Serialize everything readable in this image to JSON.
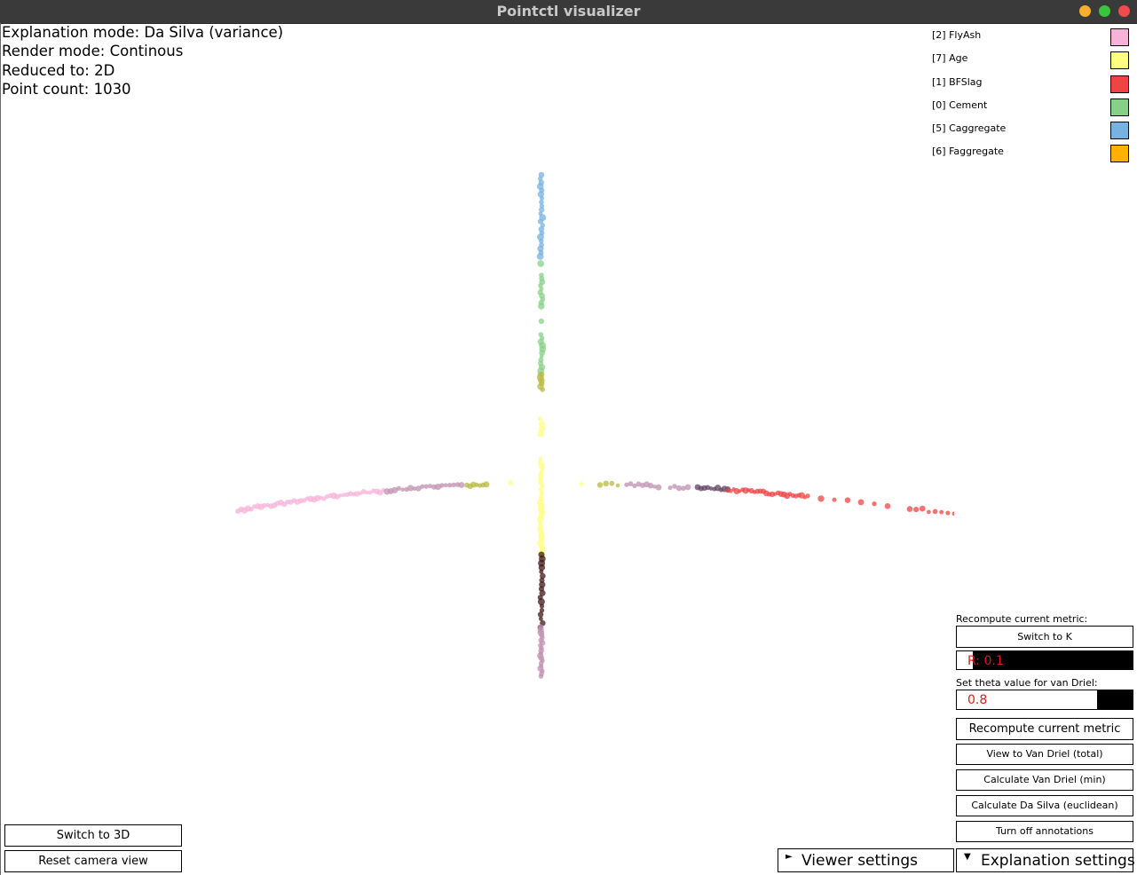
{
  "window": {
    "title": "Pointctl visualizer"
  },
  "info": {
    "explanation_mode": "Explanation mode: Da Silva (variance)",
    "render_mode": "Render mode: Continous",
    "reduced_to": "Reduced to: 2D",
    "point_count": "Point count: 1030"
  },
  "legend": [
    {
      "label": "[2] FlyAsh",
      "color": "#f7b2d9"
    },
    {
      "label": "[7] Age",
      "color": "#ffff80"
    },
    {
      "label": "[1] BFSlag",
      "color": "#ee4444"
    },
    {
      "label": "[0] Cement",
      "color": "#88d088"
    },
    {
      "label": "[5] Caggregate",
      "color": "#77b2e0"
    },
    {
      "label": "[6] Faggregate",
      "color": "#ffb000"
    }
  ],
  "panel": {
    "recompute_label": "Recompute current metric:",
    "switch_k_button": "Switch to K",
    "r_field": "R: 0.1",
    "r_fill_fraction": 0.91,
    "theta_label": "Set theta value for van Driel:",
    "theta_field": "0.8",
    "theta_fill_fraction": 0.2,
    "recompute_button": "Recompute current metric",
    "van_driel_total_button": "View to Van Driel (total)",
    "van_driel_min_button": "Calculate Van Driel (min)",
    "da_silva_button": "Calculate Da Silva (euclidean)",
    "annotations_button": "Turn off annotations"
  },
  "bottom": {
    "switch_3d_button": "Switch to 3D",
    "reset_camera_button": "Reset camera view",
    "viewer_settings_tab": "Viewer settings",
    "explanation_settings_tab": "Explanation settings"
  },
  "icons": {
    "viewer_arrow": "►",
    "explanation_arrow": "▼"
  },
  "colors": {
    "flyash": "#f7b2d9",
    "age": "#ffff80",
    "bfslag": "#ee4444",
    "cement": "#88d088",
    "caggregate": "#77b2e0",
    "faggregate": "#ffb000",
    "dark": "#401818",
    "black": "#101010",
    "olive": "#b8b840",
    "mauve": "#c090b0"
  }
}
